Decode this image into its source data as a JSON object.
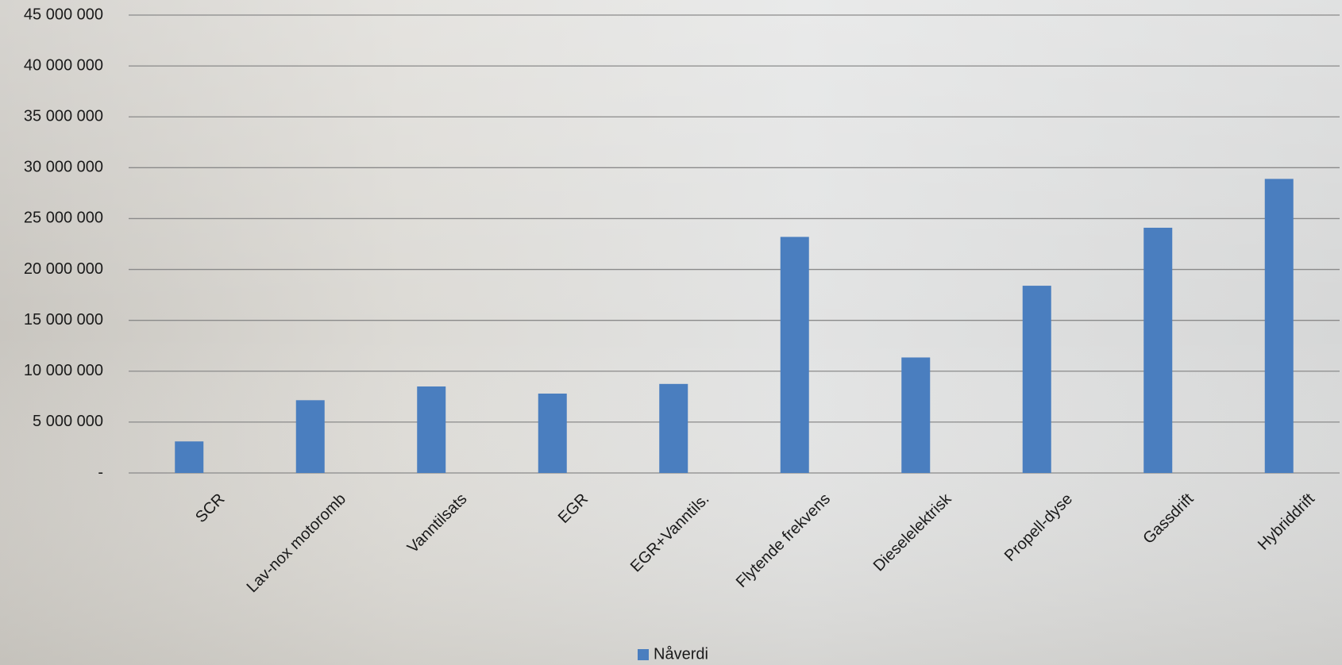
{
  "chart_data": {
    "type": "bar",
    "categories": [
      "SCR",
      "Lav-nox motoromb",
      "Vanntilsats",
      "EGR",
      "EGR+Vanntils.",
      "Flytende frekvens",
      "Dieselelektrisk",
      "Propell-dyse",
      "Gassdrift",
      "Hybriddrift"
    ],
    "series": [
      {
        "name": "Nåverdi",
        "color": "#4a7ebf",
        "values": [
          3100000,
          7150000,
          8500000,
          7800000,
          8750000,
          23200000,
          11350000,
          18400000,
          24100000,
          28900000
        ]
      }
    ],
    "ylim": [
      0,
      45000000
    ],
    "yticks": [
      {
        "value": 0,
        "label": "-"
      },
      {
        "value": 5000000,
        "label": "5 000 000"
      },
      {
        "value": 10000000,
        "label": "10 000 000"
      },
      {
        "value": 15000000,
        "label": "15 000 000"
      },
      {
        "value": 20000000,
        "label": "20 000 000"
      },
      {
        "value": 25000000,
        "label": "25 000 000"
      },
      {
        "value": 30000000,
        "label": "30 000 000"
      },
      {
        "value": 35000000,
        "label": "35 000 000"
      },
      {
        "value": 40000000,
        "label": "40 000 000"
      },
      {
        "value": 45000000,
        "label": "45 000 000"
      }
    ],
    "grid": true,
    "legend": "bottom"
  }
}
